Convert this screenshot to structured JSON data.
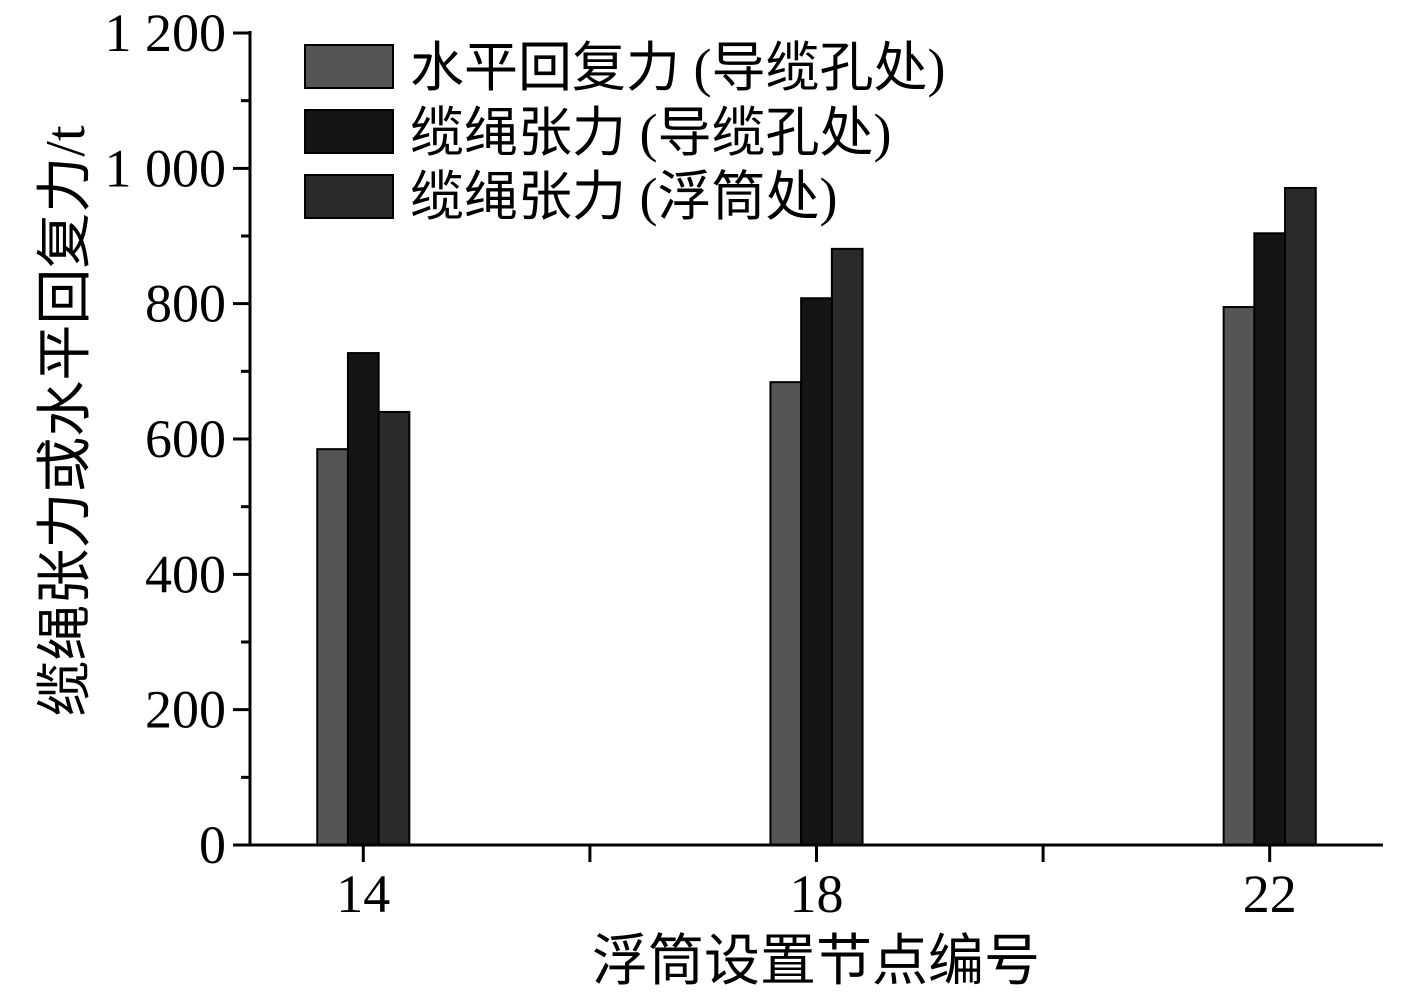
{
  "chart_data": {
    "type": "bar",
    "title": "",
    "categories": [
      "14",
      "18",
      "22"
    ],
    "xlim": [
      13,
      23
    ],
    "ylim": [
      0,
      1200
    ],
    "yticks": [
      0,
      200,
      400,
      600,
      800,
      1000,
      1200
    ],
    "ytick_labels": [
      "0",
      "200",
      "400",
      "600",
      "800",
      "1 000",
      "1 200"
    ],
    "xlabel": "浮筒设置节点编号",
    "ylabel": "缆绳张力或水平回复力/t",
    "grid": false,
    "legend": "top-left",
    "series": [
      {
        "name": "水平回复力 (导缆孔处)",
        "values": [
          585,
          684,
          795
        ],
        "color": "#555555"
      },
      {
        "name": "缆绳张力 (导缆孔处)",
        "values": [
          727,
          808,
          904
        ],
        "color": "#151515"
      },
      {
        "name": "缆绳张力 (浮筒处)",
        "values": [
          640,
          881,
          971
        ],
        "color": "#2a2a2a"
      }
    ]
  }
}
